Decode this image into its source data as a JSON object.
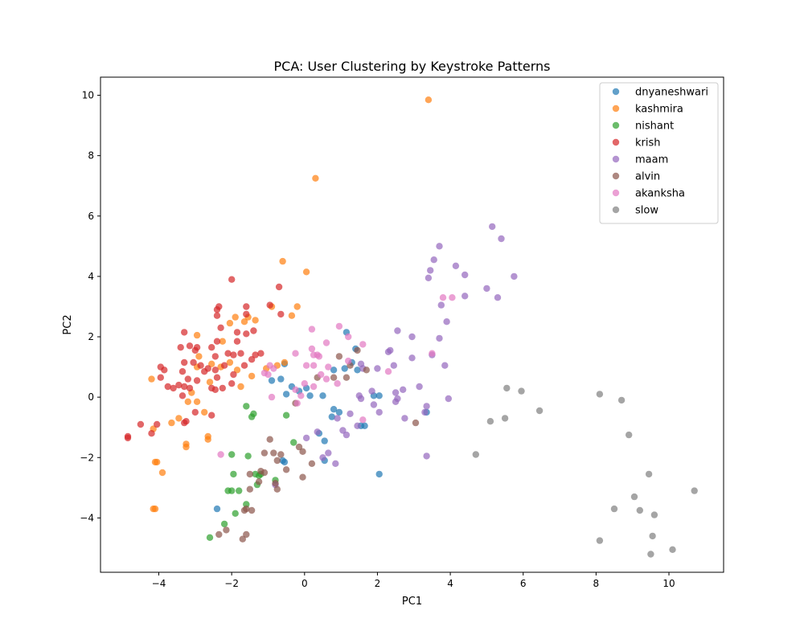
{
  "chart_data": {
    "type": "scatter",
    "title": "PCA: User Clustering by Keystroke Patterns",
    "xlabel": "PC1",
    "ylabel": "PC2",
    "xlim": [
      -5.6,
      11.5
    ],
    "ylim": [
      -5.8,
      10.6
    ],
    "xticks": [
      -4,
      -2,
      0,
      2,
      4,
      6,
      8,
      10
    ],
    "yticks": [
      -4,
      -2,
      0,
      2,
      4,
      6,
      8,
      10
    ],
    "grid": false,
    "legend_position": "top-right",
    "series": [
      {
        "name": "dnyaneshwari",
        "color": "#1f77b4",
        "points": [
          [
            -2.4,
            -3.7
          ],
          [
            -0.9,
            0.55
          ],
          [
            -0.65,
            0.6
          ],
          [
            -0.55,
            1.1
          ],
          [
            -0.5,
            0.1
          ],
          [
            -0.35,
            0.35
          ],
          [
            -0.15,
            0.2
          ],
          [
            0.05,
            0.3
          ],
          [
            0.15,
            0.05
          ],
          [
            0.4,
            -1.2
          ],
          [
            0.5,
            0.05
          ],
          [
            0.55,
            -1.45
          ],
          [
            0.55,
            -2.1
          ],
          [
            0.75,
            -0.65
          ],
          [
            0.8,
            -0.4
          ],
          [
            0.8,
            0.9
          ],
          [
            0.95,
            -0.5
          ],
          [
            1.1,
            0.95
          ],
          [
            1.15,
            2.15
          ],
          [
            1.3,
            1.15
          ],
          [
            1.4,
            1.6
          ],
          [
            1.45,
            0.9
          ],
          [
            1.55,
            -0.95
          ],
          [
            1.65,
            -0.95
          ],
          [
            1.9,
            0.05
          ],
          [
            2.05,
            0.05
          ],
          [
            2.05,
            -2.55
          ],
          [
            3.35,
            -0.5
          ],
          [
            -0.6,
            -2.1
          ],
          [
            -0.55,
            -2.15
          ]
        ]
      },
      {
        "name": "kashmira",
        "color": "#ff7f0e",
        "points": [
          [
            3.4,
            9.85
          ],
          [
            0.3,
            7.25
          ],
          [
            -0.6,
            4.5
          ],
          [
            0.05,
            4.15
          ],
          [
            -0.2,
            3.0
          ],
          [
            -0.9,
            3.0
          ],
          [
            -1.9,
            2.65
          ],
          [
            -1.55,
            2.65
          ],
          [
            -1.35,
            2.55
          ],
          [
            -2.05,
            2.45
          ],
          [
            -1.65,
            2.5
          ],
          [
            -2.95,
            2.05
          ],
          [
            -2.25,
            1.85
          ],
          [
            -2.9,
            1.35
          ],
          [
            -2.55,
            1.1
          ],
          [
            -2.05,
            1.15
          ],
          [
            -2.3,
            1.0
          ],
          [
            -2.95,
            1.0
          ],
          [
            -1.85,
            0.9
          ],
          [
            -1.45,
            0.7
          ],
          [
            -1.75,
            0.35
          ],
          [
            -2.6,
            0.5
          ],
          [
            -3.1,
            0.15
          ],
          [
            -3.2,
            -0.15
          ],
          [
            -2.95,
            -0.15
          ],
          [
            -3.45,
            -0.7
          ],
          [
            -3.65,
            -0.85
          ],
          [
            -2.75,
            -0.5
          ],
          [
            -2.65,
            -1.3
          ],
          [
            -2.65,
            -1.4
          ],
          [
            -3.25,
            -1.55
          ],
          [
            -3.25,
            -1.65
          ],
          [
            -4.2,
            0.6
          ],
          [
            -4.15,
            -1.05
          ],
          [
            -4.05,
            -2.15
          ],
          [
            -4.1,
            -2.15
          ],
          [
            -3.9,
            -2.5
          ],
          [
            -4.15,
            -3.7
          ],
          [
            -4.1,
            -3.7
          ],
          [
            -0.75,
            1.05
          ],
          [
            -0.55,
            1.15
          ],
          [
            -0.35,
            2.7
          ],
          [
            -1.05,
            0.95
          ]
        ]
      },
      {
        "name": "nishant",
        "color": "#2ca02c",
        "points": [
          [
            -1.6,
            -0.3
          ],
          [
            -1.4,
            -0.55
          ],
          [
            -1.45,
            -0.65
          ],
          [
            -0.5,
            -0.6
          ],
          [
            -2.0,
            -1.9
          ],
          [
            -1.55,
            -1.95
          ],
          [
            -1.95,
            -2.55
          ],
          [
            -1.35,
            -2.55
          ],
          [
            -2.0,
            -3.1
          ],
          [
            -1.8,
            -3.1
          ],
          [
            -2.1,
            -3.1
          ],
          [
            -1.3,
            -2.9
          ],
          [
            -1.6,
            -3.55
          ],
          [
            -1.9,
            -3.85
          ],
          [
            -2.2,
            -4.2
          ],
          [
            -2.6,
            -4.65
          ],
          [
            -0.8,
            -2.75
          ],
          [
            -0.3,
            -1.5
          ],
          [
            -1.2,
            -2.55
          ],
          [
            -1.25,
            -2.6
          ]
        ]
      },
      {
        "name": "krish",
        "color": "#d62728",
        "points": [
          [
            -2.0,
            3.9
          ],
          [
            -0.7,
            3.65
          ],
          [
            -2.35,
            3.0
          ],
          [
            -2.4,
            2.9
          ],
          [
            -1.6,
            3.0
          ],
          [
            -0.95,
            3.05
          ],
          [
            -0.65,
            2.75
          ],
          [
            -1.6,
            2.75
          ],
          [
            -2.4,
            2.7
          ],
          [
            -2.3,
            2.3
          ],
          [
            -1.4,
            2.2
          ],
          [
            -1.85,
            2.15
          ],
          [
            -3.3,
            2.15
          ],
          [
            -1.6,
            2.1
          ],
          [
            -2.4,
            1.85
          ],
          [
            -2.55,
            1.65
          ],
          [
            -3.4,
            1.65
          ],
          [
            -3.15,
            1.7
          ],
          [
            -2.95,
            1.65
          ],
          [
            -3.0,
            1.55
          ],
          [
            -2.1,
            1.45
          ],
          [
            -1.95,
            1.4
          ],
          [
            -1.75,
            1.45
          ],
          [
            -1.35,
            1.4
          ],
          [
            -2.45,
            1.35
          ],
          [
            -3.3,
            1.15
          ],
          [
            -3.05,
            1.15
          ],
          [
            -2.85,
            1.05
          ],
          [
            -2.65,
            0.95
          ],
          [
            -2.45,
            0.9
          ],
          [
            -2.2,
            1.05
          ],
          [
            -1.65,
            1.05
          ],
          [
            -3.95,
            1.0
          ],
          [
            -3.85,
            0.9
          ],
          [
            -3.35,
            0.85
          ],
          [
            -2.75,
            0.85
          ],
          [
            -2.4,
            0.65
          ],
          [
            -1.95,
            0.75
          ],
          [
            -3.2,
            0.6
          ],
          [
            -2.95,
            0.55
          ],
          [
            -3.95,
            0.65
          ],
          [
            -3.75,
            0.35
          ],
          [
            -3.6,
            0.3
          ],
          [
            -3.45,
            0.4
          ],
          [
            -3.3,
            0.35
          ],
          [
            -3.15,
            0.3
          ],
          [
            -2.55,
            0.3
          ],
          [
            -2.45,
            0.25
          ],
          [
            -2.25,
            0.3
          ],
          [
            -2.0,
            0.45
          ],
          [
            -3.35,
            0.05
          ],
          [
            -3.0,
            -0.5
          ],
          [
            -2.55,
            -0.6
          ],
          [
            -3.25,
            -0.8
          ],
          [
            -3.3,
            -0.85
          ],
          [
            -4.05,
            -0.9
          ],
          [
            -4.5,
            -0.9
          ],
          [
            -4.2,
            -1.2
          ],
          [
            -4.85,
            -1.3
          ],
          [
            -4.85,
            -1.35
          ],
          [
            -1.85,
            1.85
          ],
          [
            -1.45,
            1.25
          ],
          [
            -1.2,
            1.45
          ]
        ]
      },
      {
        "name": "maam",
        "color": "#9467bd",
        "points": [
          [
            5.15,
            5.65
          ],
          [
            5.4,
            5.25
          ],
          [
            3.7,
            5.0
          ],
          [
            3.55,
            4.55
          ],
          [
            4.15,
            4.35
          ],
          [
            3.45,
            4.2
          ],
          [
            4.4,
            4.05
          ],
          [
            3.4,
            3.95
          ],
          [
            5.75,
            4.0
          ],
          [
            5.0,
            3.6
          ],
          [
            4.4,
            3.35
          ],
          [
            5.3,
            3.3
          ],
          [
            3.75,
            3.05
          ],
          [
            3.9,
            2.5
          ],
          [
            2.55,
            2.2
          ],
          [
            2.95,
            2.0
          ],
          [
            3.7,
            1.95
          ],
          [
            3.5,
            1.4
          ],
          [
            2.3,
            1.5
          ],
          [
            2.35,
            1.55
          ],
          [
            2.95,
            1.3
          ],
          [
            1.55,
            1.1
          ],
          [
            1.6,
            0.95
          ],
          [
            2.0,
            0.95
          ],
          [
            2.45,
            1.05
          ],
          [
            3.85,
            1.05
          ],
          [
            3.15,
            0.35
          ],
          [
            2.7,
            0.25
          ],
          [
            1.85,
            0.2
          ],
          [
            2.5,
            0.15
          ],
          [
            1.5,
            0.05
          ],
          [
            1.55,
            -0.05
          ],
          [
            2.55,
            -0.05
          ],
          [
            3.95,
            -0.05
          ],
          [
            2.5,
            -0.15
          ],
          [
            1.9,
            -0.25
          ],
          [
            3.35,
            -0.3
          ],
          [
            2.05,
            -0.5
          ],
          [
            3.3,
            -0.5
          ],
          [
            1.25,
            -0.55
          ],
          [
            2.75,
            -0.7
          ],
          [
            0.9,
            -0.7
          ],
          [
            1.05,
            -1.1
          ],
          [
            1.45,
            -0.95
          ],
          [
            1.15,
            -1.25
          ],
          [
            0.05,
            -1.35
          ],
          [
            0.35,
            -1.15
          ],
          [
            0.65,
            -1.85
          ],
          [
            0.5,
            -2.0
          ],
          [
            0.85,
            -2.2
          ],
          [
            3.35,
            -1.95
          ],
          [
            -0.8,
            -2.9
          ]
        ]
      },
      {
        "name": "alvin",
        "color": "#8c564b",
        "points": [
          [
            0.95,
            1.35
          ],
          [
            1.45,
            1.55
          ],
          [
            1.25,
            1.05
          ],
          [
            1.7,
            0.9
          ],
          [
            0.35,
            0.65
          ],
          [
            0.8,
            0.65
          ],
          [
            1.15,
            0.65
          ],
          [
            -0.95,
            -1.4
          ],
          [
            -0.15,
            -1.65
          ],
          [
            -0.05,
            -1.8
          ],
          [
            -0.85,
            -1.85
          ],
          [
            -1.1,
            -1.85
          ],
          [
            -0.65,
            -1.9
          ],
          [
            -0.75,
            -2.1
          ],
          [
            0.2,
            -2.2
          ],
          [
            -0.5,
            -2.4
          ],
          [
            -1.2,
            -2.45
          ],
          [
            -1.1,
            -2.5
          ],
          [
            -1.5,
            -2.55
          ],
          [
            -1.25,
            -2.8
          ],
          [
            -0.8,
            -2.85
          ],
          [
            -0.75,
            -3.05
          ],
          [
            -1.5,
            -3.05
          ],
          [
            -0.05,
            -2.65
          ],
          [
            -1.6,
            -3.7
          ],
          [
            -1.45,
            -3.75
          ],
          [
            -1.65,
            -3.75
          ],
          [
            -2.15,
            -4.4
          ],
          [
            -1.6,
            -4.55
          ],
          [
            -1.7,
            -4.7
          ],
          [
            -2.35,
            -4.55
          ],
          [
            3.05,
            -0.85
          ],
          [
            -0.25,
            -0.2
          ]
        ]
      },
      {
        "name": "akanksha",
        "color": "#e377c2",
        "points": [
          [
            4.05,
            3.3
          ],
          [
            3.8,
            3.3
          ],
          [
            0.95,
            2.35
          ],
          [
            0.2,
            2.25
          ],
          [
            1.2,
            2.0
          ],
          [
            0.2,
            1.6
          ],
          [
            1.6,
            1.75
          ],
          [
            0.6,
            1.8
          ],
          [
            0.25,
            1.4
          ],
          [
            0.35,
            1.4
          ],
          [
            0.4,
            1.35
          ],
          [
            -0.25,
            1.45
          ],
          [
            3.5,
            1.45
          ],
          [
            -0.95,
            1.05
          ],
          [
            -0.85,
            0.95
          ],
          [
            0.05,
            1.05
          ],
          [
            0.25,
            1.05
          ],
          [
            0.65,
            1.0
          ],
          [
            2.3,
            0.85
          ],
          [
            0.45,
            0.75
          ],
          [
            -1.1,
            0.8
          ],
          [
            -1.0,
            0.75
          ],
          [
            0.0,
            0.45
          ],
          [
            -0.1,
            0.05
          ],
          [
            0.25,
            0.35
          ],
          [
            -0.25,
            0.25
          ],
          [
            -0.9,
            0.0
          ],
          [
            -0.2,
            -0.2
          ],
          [
            1.6,
            -0.75
          ],
          [
            -2.3,
            -1.9
          ],
          [
            1.2,
            1.2
          ],
          [
            0.9,
            0.45
          ],
          [
            0.6,
            0.6
          ]
        ]
      },
      {
        "name": "slow",
        "color": "#7f7f7f",
        "points": [
          [
            5.55,
            0.3
          ],
          [
            5.95,
            0.2
          ],
          [
            6.45,
            -0.45
          ],
          [
            5.5,
            -0.7
          ],
          [
            5.1,
            -0.8
          ],
          [
            4.7,
            -1.9
          ],
          [
            8.1,
            0.1
          ],
          [
            8.7,
            -0.1
          ],
          [
            8.9,
            -1.25
          ],
          [
            9.45,
            -2.55
          ],
          [
            9.05,
            -3.3
          ],
          [
            9.6,
            -3.9
          ],
          [
            8.5,
            -3.7
          ],
          [
            9.2,
            -3.75
          ],
          [
            10.7,
            -3.1
          ],
          [
            8.1,
            -4.75
          ],
          [
            9.55,
            -4.6
          ],
          [
            10.1,
            -5.05
          ],
          [
            9.5,
            -5.2
          ]
        ]
      }
    ]
  }
}
